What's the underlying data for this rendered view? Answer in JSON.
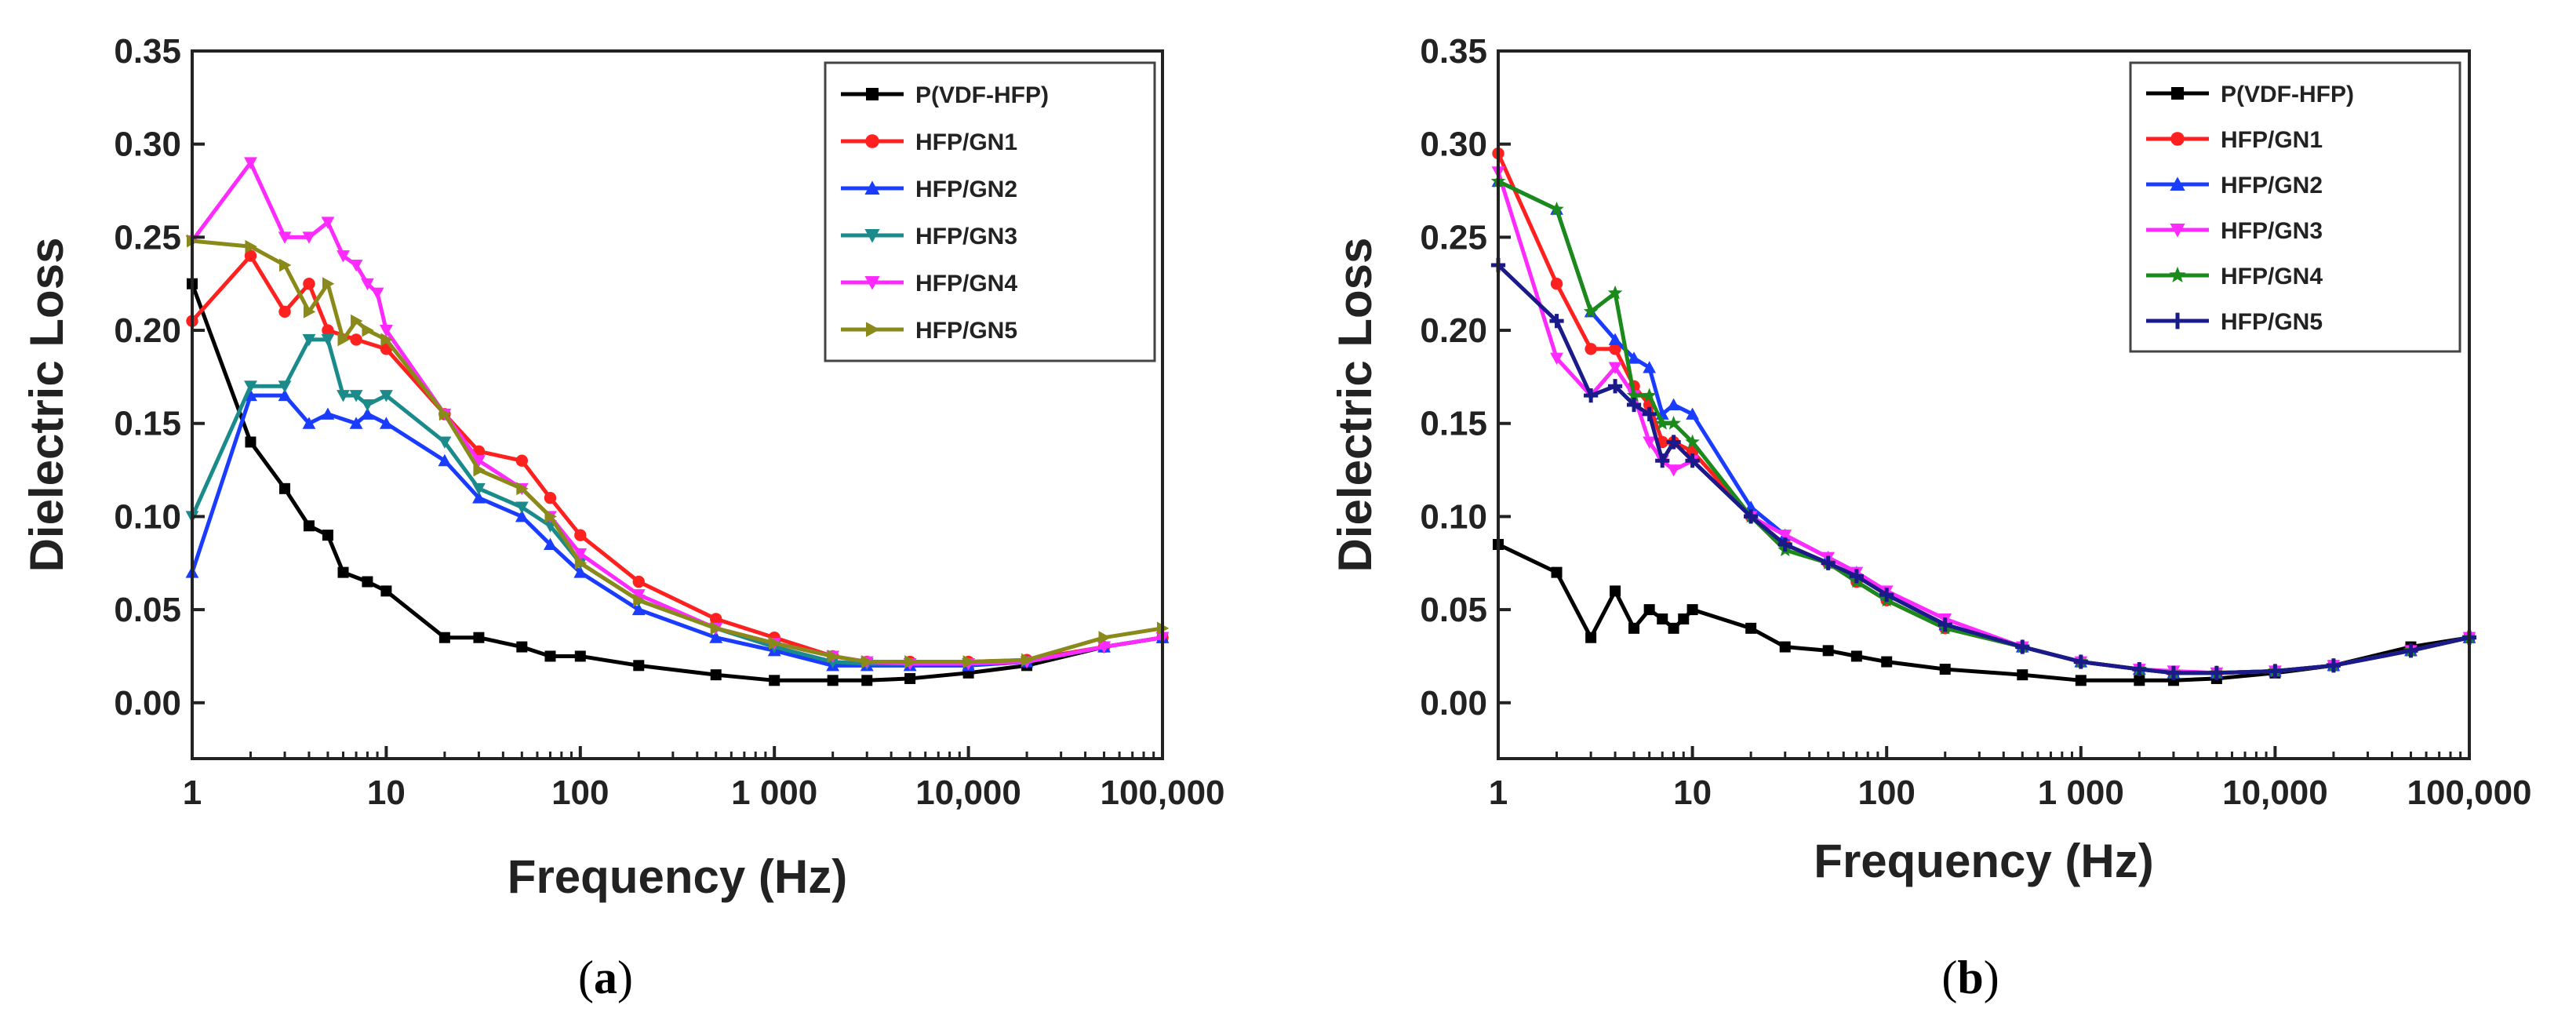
{
  "chart_data": [
    {
      "type": "line",
      "panel_label": "a",
      "xlabel": "Frequency (Hz)",
      "ylabel": "Dielectric Loss",
      "xscale": "log",
      "xlim": [
        1,
        100000
      ],
      "ylim": [
        -0.03,
        0.35
      ],
      "xticks": [
        1,
        10,
        100,
        1000,
        10000,
        100000
      ],
      "xtick_labels": [
        "1",
        "10",
        "100",
        "1 000",
        "10,000",
        "100,000"
      ],
      "yticks": [
        0.0,
        0.05,
        0.1,
        0.15,
        0.2,
        0.25,
        0.3,
        0.35
      ],
      "ytick_labels": [
        "0.00",
        "0.05",
        "0.10",
        "0.15",
        "0.20",
        "0.25",
        "0.30",
        "0.35"
      ],
      "legend_position": "top-right",
      "series": [
        {
          "name": "P(VDF-HFP)",
          "color": "#000000",
          "marker": "square",
          "x": [
            1,
            2,
            3,
            4,
            5,
            6,
            8,
            10,
            20,
            30,
            50,
            70,
            100,
            200,
            500,
            1000,
            2000,
            3000,
            5000,
            10000,
            20000,
            50000,
            100000
          ],
          "y": [
            0.225,
            0.14,
            0.115,
            0.095,
            0.09,
            0.07,
            0.065,
            0.06,
            0.035,
            0.035,
            0.03,
            0.025,
            0.025,
            0.02,
            0.015,
            0.012,
            0.012,
            0.012,
            0.013,
            0.016,
            0.02,
            0.03,
            0.035
          ]
        },
        {
          "name": "HFP/GN1",
          "color": "#ff2020",
          "marker": "circle",
          "x": [
            1,
            2,
            3,
            4,
            5,
            7,
            10,
            20,
            30,
            50,
            70,
            100,
            200,
            500,
            1000,
            2000,
            3000,
            5000,
            10000,
            20000,
            50000,
            100000
          ],
          "y": [
            0.205,
            0.24,
            0.21,
            0.225,
            0.2,
            0.195,
            0.19,
            0.155,
            0.135,
            0.13,
            0.11,
            0.09,
            0.065,
            0.045,
            0.035,
            0.025,
            0.022,
            0.022,
            0.022,
            0.023,
            0.03,
            0.035
          ]
        },
        {
          "name": "HFP/GN2",
          "color": "#1a3cff",
          "marker": "triangle-up",
          "x": [
            1,
            2,
            3,
            4,
            5,
            7,
            8,
            10,
            20,
            30,
            50,
            70,
            100,
            200,
            500,
            1000,
            2000,
            3000,
            5000,
            10000,
            20000,
            50000,
            100000
          ],
          "y": [
            0.07,
            0.165,
            0.165,
            0.15,
            0.155,
            0.15,
            0.155,
            0.15,
            0.13,
            0.11,
            0.1,
            0.085,
            0.07,
            0.05,
            0.035,
            0.028,
            0.02,
            0.02,
            0.02,
            0.02,
            0.022,
            0.03,
            0.035
          ]
        },
        {
          "name": "HFP/GN3",
          "color": "#1a8a8a",
          "marker": "triangle-down",
          "x": [
            1,
            2,
            3,
            4,
            5,
            6,
            7,
            8,
            10,
            20,
            30,
            50,
            70,
            100,
            200,
            500,
            1000,
            2000,
            3000,
            5000,
            10000,
            20000,
            50000,
            100000
          ],
          "y": [
            0.1,
            0.17,
            0.17,
            0.195,
            0.195,
            0.165,
            0.165,
            0.16,
            0.165,
            0.14,
            0.115,
            0.105,
            0.095,
            0.075,
            0.055,
            0.04,
            0.03,
            0.022,
            0.021,
            0.021,
            0.021,
            0.022,
            0.03,
            0.035
          ]
        },
        {
          "name": "HFP/GN4",
          "color": "#ff2aff",
          "marker": "triangle-down",
          "x": [
            1,
            2,
            3,
            4,
            5,
            6,
            7,
            8,
            9,
            10,
            20,
            30,
            50,
            70,
            100,
            200,
            500,
            1000,
            2000,
            3000,
            5000,
            10000,
            20000,
            50000,
            100000
          ],
          "y": [
            0.248,
            0.29,
            0.25,
            0.25,
            0.258,
            0.24,
            0.235,
            0.225,
            0.22,
            0.2,
            0.155,
            0.13,
            0.115,
            0.1,
            0.08,
            0.058,
            0.04,
            0.032,
            0.025,
            0.022,
            0.021,
            0.021,
            0.022,
            0.03,
            0.035
          ]
        },
        {
          "name": "HFP/GN5",
          "color": "#8a8a1a",
          "marker": "triangle-right",
          "x": [
            1,
            2,
            3,
            4,
            5,
            6,
            7,
            8,
            10,
            20,
            30,
            50,
            70,
            100,
            200,
            500,
            1000,
            2000,
            3000,
            5000,
            10000,
            20000,
            50000,
            100000
          ],
          "y": [
            0.248,
            0.245,
            0.235,
            0.21,
            0.225,
            0.195,
            0.205,
            0.2,
            0.195,
            0.155,
            0.125,
            0.115,
            0.1,
            0.075,
            0.055,
            0.04,
            0.032,
            0.025,
            0.022,
            0.022,
            0.022,
            0.023,
            0.035,
            0.04
          ]
        }
      ]
    },
    {
      "type": "line",
      "panel_label": "b",
      "xlabel": "Frequency (Hz)",
      "ylabel": "Dielectric Loss",
      "xscale": "log",
      "xlim": [
        1,
        100000
      ],
      "ylim": [
        -0.03,
        0.35
      ],
      "xticks": [
        1,
        10,
        100,
        1000,
        10000,
        100000
      ],
      "xtick_labels": [
        "1",
        "10",
        "100",
        "1 000",
        "10,000",
        "100,000"
      ],
      "yticks": [
        0.0,
        0.05,
        0.1,
        0.15,
        0.2,
        0.25,
        0.3,
        0.35
      ],
      "ytick_labels": [
        "0.00",
        "0.05",
        "0.10",
        "0.15",
        "0.20",
        "0.25",
        "0.30",
        "0.35"
      ],
      "legend_position": "top-right",
      "series": [
        {
          "name": "P(VDF-HFP)",
          "color": "#000000",
          "marker": "square",
          "x": [
            1,
            2,
            3,
            4,
            5,
            6,
            7,
            8,
            9,
            10,
            20,
            30,
            50,
            70,
            100,
            200,
            500,
            1000,
            2000,
            3000,
            5000,
            10000,
            20000,
            50000,
            100000
          ],
          "y": [
            0.085,
            0.07,
            0.035,
            0.06,
            0.04,
            0.05,
            0.045,
            0.04,
            0.045,
            0.05,
            0.04,
            0.03,
            0.028,
            0.025,
            0.022,
            0.018,
            0.015,
            0.012,
            0.012,
            0.012,
            0.013,
            0.016,
            0.02,
            0.03,
            0.035
          ]
        },
        {
          "name": "HFP/GN1",
          "color": "#ff2020",
          "marker": "circle",
          "x": [
            1,
            2,
            3,
            4,
            5,
            6,
            7,
            8,
            10,
            20,
            30,
            50,
            70,
            100,
            200,
            500,
            1000,
            2000,
            3000,
            5000,
            10000,
            20000,
            50000,
            100000
          ],
          "y": [
            0.295,
            0.225,
            0.19,
            0.19,
            0.17,
            0.16,
            0.14,
            0.14,
            0.135,
            0.1,
            0.085,
            0.075,
            0.065,
            0.055,
            0.04,
            0.03,
            0.022,
            0.018,
            0.016,
            0.016,
            0.017,
            0.02,
            0.028,
            0.035
          ]
        },
        {
          "name": "HFP/GN2",
          "color": "#1a3cff",
          "marker": "triangle-up",
          "x": [
            1,
            2,
            3,
            4,
            5,
            6,
            7,
            8,
            10,
            20,
            30,
            50,
            70,
            100,
            200,
            500,
            1000,
            2000,
            3000,
            5000,
            10000,
            20000,
            50000,
            100000
          ],
          "y": [
            0.28,
            0.265,
            0.21,
            0.195,
            0.185,
            0.18,
            0.155,
            0.16,
            0.155,
            0.105,
            0.09,
            0.078,
            0.07,
            0.058,
            0.042,
            0.03,
            0.022,
            0.018,
            0.016,
            0.016,
            0.017,
            0.02,
            0.028,
            0.035
          ]
        },
        {
          "name": "HFP/GN3",
          "color": "#ff2aff",
          "marker": "triangle-down",
          "x": [
            1,
            2,
            3,
            4,
            5,
            6,
            7,
            8,
            10,
            20,
            30,
            50,
            70,
            100,
            200,
            500,
            1000,
            2000,
            3000,
            5000,
            10000,
            20000,
            50000,
            100000
          ],
          "y": [
            0.285,
            0.185,
            0.165,
            0.18,
            0.165,
            0.14,
            0.13,
            0.125,
            0.13,
            0.1,
            0.09,
            0.078,
            0.07,
            0.06,
            0.045,
            0.03,
            0.022,
            0.018,
            0.017,
            0.016,
            0.017,
            0.02,
            0.028,
            0.035
          ]
        },
        {
          "name": "HFP/GN4",
          "color": "#1a8a1a",
          "marker": "star",
          "x": [
            1,
            2,
            3,
            4,
            5,
            6,
            7,
            8,
            10,
            20,
            30,
            50,
            70,
            100,
            200,
            500,
            1000,
            2000,
            3000,
            5000,
            10000,
            20000,
            50000,
            100000
          ],
          "y": [
            0.28,
            0.265,
            0.21,
            0.22,
            0.165,
            0.165,
            0.15,
            0.15,
            0.14,
            0.1,
            0.082,
            0.075,
            0.065,
            0.055,
            0.04,
            0.03,
            0.022,
            0.018,
            0.016,
            0.016,
            0.017,
            0.02,
            0.028,
            0.035
          ]
        },
        {
          "name": "HFP/GN5",
          "color": "#1a1a8a",
          "marker": "plus",
          "x": [
            1,
            2,
            3,
            4,
            5,
            6,
            7,
            8,
            10,
            20,
            30,
            50,
            70,
            100,
            200,
            500,
            1000,
            2000,
            3000,
            5000,
            10000,
            20000,
            50000,
            100000
          ],
          "y": [
            0.235,
            0.205,
            0.165,
            0.17,
            0.16,
            0.155,
            0.13,
            0.14,
            0.13,
            0.1,
            0.085,
            0.075,
            0.068,
            0.058,
            0.042,
            0.03,
            0.022,
            0.018,
            0.016,
            0.016,
            0.017,
            0.02,
            0.028,
            0.035
          ]
        }
      ]
    }
  ],
  "captions": [
    "(a)",
    "(b)"
  ]
}
